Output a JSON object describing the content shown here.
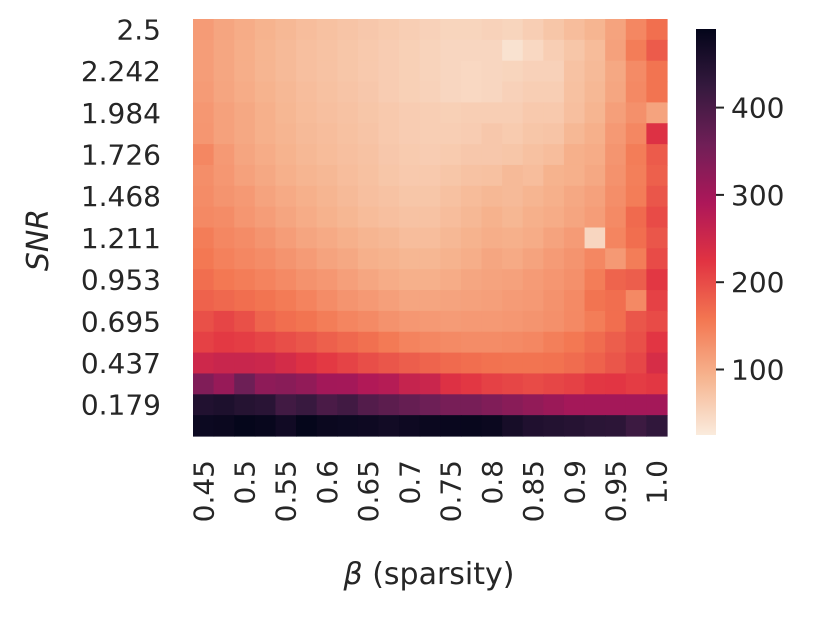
{
  "chart_data": {
    "type": "heatmap",
    "title": "",
    "xlabel_symbol": "β",
    "xlabel_text": " (sparsity)",
    "ylabel": "SNR",
    "x_tick_labels": [
      "0.45",
      "0.5",
      "0.55",
      "0.6",
      "0.65",
      "0.7",
      "0.75",
      "0.8",
      "0.85",
      "0.9",
      "0.95",
      "1.0"
    ],
    "y_tick_labels": [
      "2.5",
      "2.242",
      "1.984",
      "1.726",
      "1.468",
      "1.211",
      "0.953",
      "0.695",
      "0.437",
      "0.179"
    ],
    "x_values": [
      0.45,
      0.475,
      0.5,
      0.525,
      0.55,
      0.575,
      0.6,
      0.625,
      0.65,
      0.675,
      0.7,
      0.725,
      0.75,
      0.775,
      0.8,
      0.825,
      0.85,
      0.875,
      0.9,
      0.925,
      0.95,
      0.975,
      1.0
    ],
    "y_values": [
      2.5,
      2.371,
      2.242,
      2.113,
      1.984,
      1.855,
      1.726,
      1.597,
      1.468,
      1.339,
      1.211,
      1.082,
      0.953,
      0.824,
      0.695,
      0.566,
      0.437,
      0.308,
      0.179,
      0.05
    ],
    "colorbar": {
      "range": [
        25,
        490
      ],
      "ticks": [
        100,
        200,
        300,
        400
      ],
      "tick_labels": [
        "100",
        "200",
        "300",
        "400"
      ],
      "colormap": "rocket_r",
      "colormap_stops": [
        "#faebdd",
        "#f6b48f",
        "#f37651",
        "#e13342",
        "#ad1759",
        "#701f57",
        "#35193e",
        "#03051a"
      ]
    },
    "values": [
      [
        118,
        108,
        100,
        92,
        86,
        80,
        76,
        72,
        68,
        64,
        60,
        56,
        52,
        52,
        55,
        52,
        60,
        70,
        80,
        90,
        110,
        140,
        165
      ],
      [
        116,
        106,
        98,
        90,
        84,
        78,
        74,
        70,
        66,
        62,
        58,
        54,
        50,
        50,
        50,
        36,
        48,
        60,
        70,
        82,
        112,
        150,
        185
      ],
      [
        116,
        106,
        98,
        90,
        84,
        78,
        74,
        70,
        66,
        62,
        58,
        54,
        50,
        48,
        50,
        52,
        56,
        56,
        74,
        84,
        104,
        135,
        160
      ],
      [
        118,
        108,
        100,
        92,
        86,
        80,
        76,
        72,
        68,
        62,
        58,
        55,
        50,
        48,
        50,
        56,
        60,
        60,
        76,
        86,
        106,
        138,
        160
      ],
      [
        122,
        112,
        104,
        96,
        88,
        82,
        78,
        74,
        70,
        66,
        62,
        60,
        58,
        60,
        60,
        60,
        66,
        66,
        78,
        90,
        114,
        130,
        110
      ],
      [
        124,
        112,
        104,
        96,
        90,
        84,
        80,
        76,
        72,
        66,
        62,
        60,
        60,
        62,
        68,
        64,
        70,
        72,
        86,
        96,
        120,
        140,
        230
      ],
      [
        140,
        120,
        108,
        100,
        92,
        86,
        82,
        78,
        74,
        68,
        64,
        62,
        64,
        68,
        68,
        70,
        76,
        80,
        96,
        100,
        125,
        150,
        185
      ],
      [
        132,
        122,
        112,
        104,
        96,
        90,
        86,
        80,
        76,
        70,
        66,
        66,
        70,
        74,
        76,
        84,
        80,
        92,
        96,
        104,
        128,
        148,
        180
      ],
      [
        134,
        126,
        120,
        110,
        102,
        96,
        90,
        84,
        78,
        74,
        70,
        70,
        76,
        82,
        86,
        84,
        90,
        96,
        104,
        112,
        132,
        150,
        190
      ],
      [
        138,
        134,
        124,
        116,
        108,
        100,
        94,
        88,
        82,
        78,
        74,
        74,
        80,
        86,
        94,
        88,
        96,
        100,
        108,
        116,
        136,
        170,
        200
      ],
      [
        150,
        140,
        134,
        126,
        116,
        108,
        102,
        96,
        90,
        86,
        80,
        80,
        86,
        92,
        98,
        96,
        100,
        110,
        118,
        50,
        142,
        166,
        190
      ],
      [
        156,
        146,
        140,
        134,
        126,
        118,
        110,
        104,
        96,
        92,
        88,
        88,
        92,
        98,
        106,
        102,
        110,
        118,
        126,
        140,
        120,
        150,
        200
      ],
      [
        166,
        156,
        150,
        144,
        136,
        128,
        122,
        114,
        106,
        100,
        96,
        96,
        100,
        106,
        110,
        112,
        118,
        124,
        130,
        150,
        176,
        182,
        220
      ],
      [
        178,
        172,
        166,
        160,
        152,
        144,
        134,
        126,
        120,
        114,
        108,
        108,
        110,
        112,
        114,
        118,
        120,
        128,
        136,
        160,
        166,
        138,
        210
      ],
      [
        196,
        206,
        196,
        176,
        166,
        160,
        150,
        142,
        136,
        128,
        122,
        120,
        118,
        120,
        120,
        122,
        126,
        130,
        138,
        150,
        166,
        190,
        200
      ],
      [
        210,
        218,
        214,
        206,
        198,
        190,
        180,
        172,
        164,
        154,
        144,
        140,
        136,
        134,
        134,
        136,
        140,
        148,
        156,
        168,
        182,
        196,
        222
      ],
      [
        250,
        256,
        256,
        252,
        242,
        230,
        218,
        208,
        198,
        190,
        182,
        176,
        170,
        166,
        162,
        160,
        160,
        162,
        168,
        178,
        190,
        204,
        238
      ],
      [
        340,
        315,
        360,
        325,
        330,
        320,
        302,
        300,
        285,
        280,
        260,
        255,
        230,
        220,
        210,
        205,
        200,
        205,
        210,
        220,
        222,
        215,
        220
      ],
      [
        450,
        455,
        445,
        440,
        410,
        420,
        400,
        410,
        390,
        380,
        370,
        360,
        350,
        350,
        340,
        330,
        320,
        310,
        300,
        300,
        300,
        300,
        300
      ],
      [
        478,
        480,
        488,
        484,
        472,
        488,
        480,
        478,
        476,
        470,
        476,
        480,
        482,
        484,
        480,
        464,
        452,
        448,
        444,
        438,
        436,
        416,
        430
      ]
    ]
  }
}
